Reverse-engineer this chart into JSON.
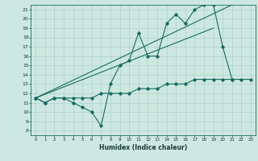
{
  "title": "",
  "xlabel": "Humidex (Indice chaleur)",
  "ylabel": "",
  "bg_color": "#cce8e0",
  "grid_color": "#aacccc",
  "line_color": "#1a6b60",
  "xlim": [
    -0.5,
    23.5
  ],
  "ylim": [
    7.5,
    21.5
  ],
  "xticks": [
    0,
    1,
    2,
    3,
    4,
    5,
    6,
    7,
    8,
    9,
    10,
    11,
    12,
    13,
    14,
    15,
    16,
    17,
    18,
    19,
    20,
    21,
    22,
    23
  ],
  "yticks": [
    8,
    9,
    10,
    11,
    12,
    13,
    14,
    15,
    16,
    17,
    18,
    19,
    20,
    21
  ],
  "line1_x": [
    0,
    1,
    2,
    3,
    4,
    5,
    6,
    7,
    8,
    9,
    10,
    11,
    12,
    13,
    14,
    15,
    16,
    17,
    18,
    19,
    20,
    21
  ],
  "line1_y": [
    11.5,
    11.0,
    11.5,
    11.5,
    11.0,
    10.5,
    10.0,
    8.5,
    13.0,
    15.0,
    15.5,
    18.5,
    16.0,
    16.0,
    19.5,
    20.5,
    19.5,
    21.0,
    21.5,
    21.5,
    17.0,
    13.5
  ],
  "line2_x": [
    0,
    1,
    2,
    3,
    4,
    5,
    6,
    7,
    8,
    9,
    10,
    11,
    12,
    13,
    14,
    15,
    16,
    17,
    18,
    19,
    20,
    21,
    22,
    23
  ],
  "line2_y": [
    11.5,
    11.0,
    11.5,
    11.5,
    11.5,
    11.5,
    11.5,
    12.0,
    12.0,
    12.0,
    12.0,
    12.5,
    12.5,
    12.5,
    13.0,
    13.0,
    13.0,
    13.5,
    13.5,
    13.5,
    13.5,
    13.5,
    13.5,
    13.5
  ],
  "line3_x": [
    0,
    21
  ],
  "line3_y": [
    11.5,
    21.5
  ],
  "line4_x": [
    0,
    19
  ],
  "line4_y": [
    11.5,
    19.0
  ]
}
